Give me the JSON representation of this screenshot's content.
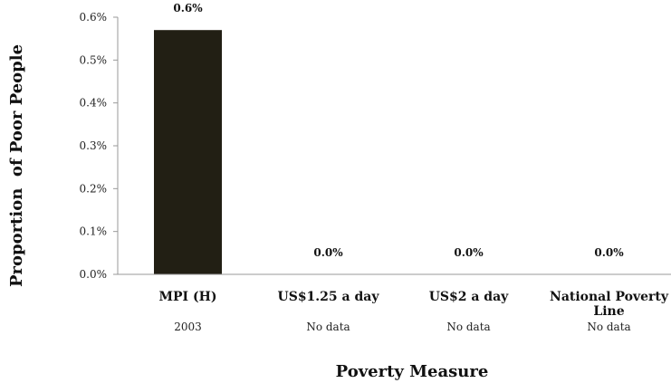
{
  "chart_data": {
    "type": "bar",
    "categories": [
      "MPI (H)",
      "US$1.25 a day",
      "US$2 a day",
      "National Poverty Line"
    ],
    "category_lines": [
      [
        "MPI (H)"
      ],
      [
        "US$1.25 a day"
      ],
      [
        "US$2 a day"
      ],
      [
        "National Poverty",
        "Line"
      ]
    ],
    "subcategories": [
      "2003",
      "No data",
      "No data",
      "No data"
    ],
    "values": [
      0.57,
      0,
      0,
      0
    ],
    "data_labels": [
      "0.6%",
      "0.0%",
      "0.0%",
      "0.0%"
    ],
    "y_ticks": [
      0,
      0.1,
      0.2,
      0.3,
      0.4,
      0.5,
      0.6
    ],
    "y_tick_labels": [
      "0.0%",
      "0.1%",
      "0.2%",
      "0.3%",
      "0.4%",
      "0.5%",
      "0.6%"
    ],
    "ylim": [
      0,
      0.6
    ],
    "xlabel": "Poverty Measure",
    "ylabel": "Proportion  of Poor People",
    "grid": false,
    "colors": {
      "bar": "#221f14",
      "axis": "#999999"
    }
  }
}
